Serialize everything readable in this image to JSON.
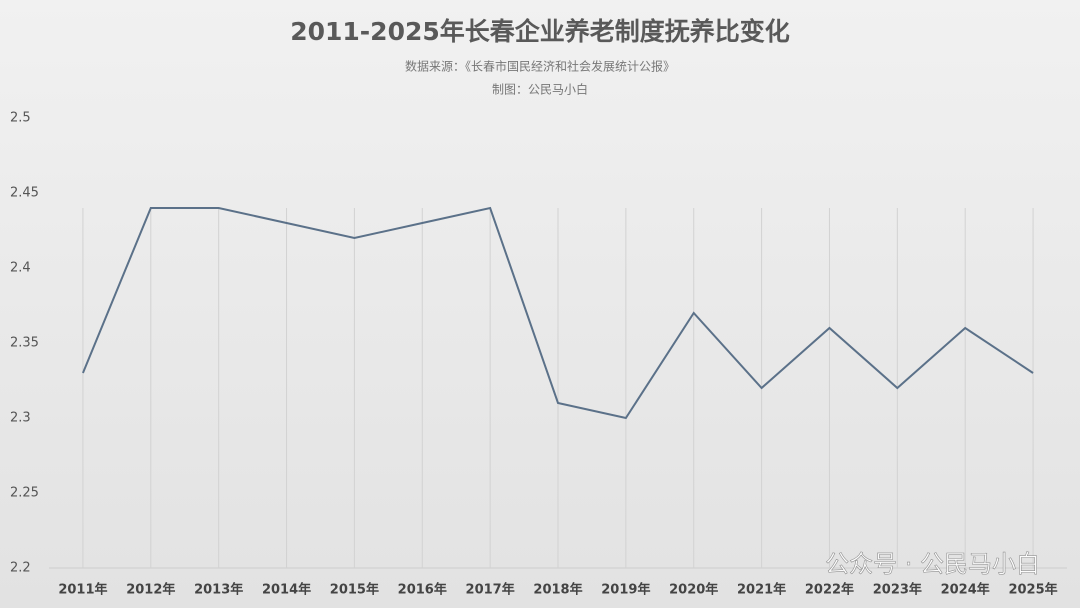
{
  "chart_data": {
    "type": "line",
    "title": "2011-2025年长春企业养老制度抚养比变化",
    "subtitle": "数据来源：《长春市国民经济和社会发展统计公报》",
    "credit": "制图：公民马小白",
    "watermark": "公众号 · 公民马小白",
    "categories": [
      "2011年",
      "2012年",
      "2013年",
      "2014年",
      "2015年",
      "2016年",
      "2017年",
      "2018年",
      "2019年",
      "2020年",
      "2021年",
      "2022年",
      "2023年",
      "2024年",
      "2025年"
    ],
    "series": [
      {
        "color": "#5b7189",
        "values": [
          2.33,
          2.44,
          2.44,
          2.43,
          2.42,
          2.43,
          2.44,
          2.31,
          2.3,
          2.37,
          2.32,
          2.36,
          2.32,
          2.36,
          2.33
        ]
      }
    ],
    "ylim": [
      2.2,
      2.5
    ],
    "yticks": [
      2.2,
      2.25,
      2.3,
      2.35,
      2.4,
      2.45,
      2.5
    ],
    "grid": true
  }
}
